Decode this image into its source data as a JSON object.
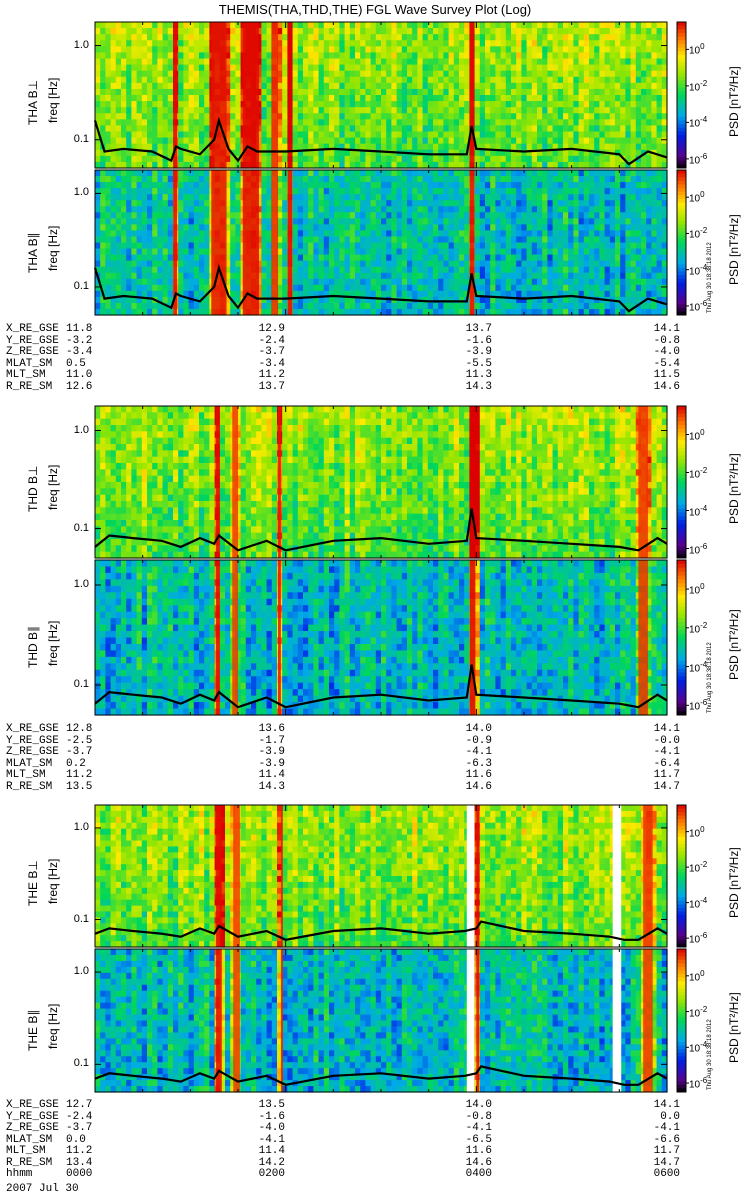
{
  "chart_data": {
    "type": "heatmap",
    "title": "THEMIS(THA,THD,THE) FGL Wave Survey Plot (Log)",
    "date": "2007 Jul 30",
    "stamp": "Thu Aug 30 18:38:18 2012",
    "x_range_hours": [
      0,
      6
    ],
    "time_ticks": [
      "0000",
      "0200",
      "0400",
      "0600"
    ],
    "freq_label": "freq [Hz]",
    "freq_ticks": [
      {
        "label": "1.0",
        "value": 1.0
      },
      {
        "label": "0.1",
        "value": 0.1
      }
    ],
    "freq_range_log10": [
      -1.3,
      0.25
    ],
    "colorbar": {
      "label": "PSD [nT²/Hz]",
      "range_log10": [
        -6.5,
        1.5
      ],
      "ticks": [
        {
          "base": "10",
          "exp": "0",
          "value": 0
        },
        {
          "base": "10",
          "exp": "-2",
          "value": -2
        },
        {
          "base": "10",
          "exp": "-4",
          "value": -4
        },
        {
          "base": "10",
          "exp": "-6",
          "value": -6
        }
      ]
    },
    "probes": [
      {
        "name": "THA",
        "panels": [
          {
            "label": "THA B⊥",
            "background_log10": -2.0,
            "stamp": false
          },
          {
            "label": "THA B∥",
            "background_log10": -3.2,
            "stamp": true
          }
        ],
        "bursts_hours": [
          {
            "t0": 0.82,
            "t1": 0.86,
            "level": 0.9
          },
          {
            "t0": 1.22,
            "t1": 1.38,
            "level": 0.8
          },
          {
            "t0": 1.55,
            "t1": 1.72,
            "level": 0.9
          },
          {
            "t0": 1.85,
            "t1": 1.92,
            "level": 0.6
          },
          {
            "t0": 2.02,
            "t1": 2.07,
            "level": 1.0
          },
          {
            "t0": 3.93,
            "t1": 3.98,
            "level": 0.9
          }
        ],
        "gaps_hours": [],
        "trace": {
          "x": [
            0.0,
            0.1,
            0.3,
            0.6,
            0.8,
            0.85,
            0.9,
            1.1,
            1.25,
            1.3,
            1.4,
            1.5,
            1.6,
            1.7,
            2.0,
            2.5,
            3.0,
            3.5,
            3.9,
            3.95,
            4.0,
            4.5,
            5.0,
            5.5,
            5.6,
            5.8,
            6.0
          ],
          "y": [
            0.16,
            0.075,
            0.08,
            0.075,
            0.06,
            0.085,
            0.08,
            0.07,
            0.1,
            0.16,
            0.08,
            0.06,
            0.085,
            0.075,
            0.075,
            0.08,
            0.075,
            0.07,
            0.07,
            0.14,
            0.08,
            0.075,
            0.08,
            0.07,
            0.055,
            0.075,
            0.065
          ]
        },
        "ephemeris": {
          "ticks": [
            "0000",
            "0200",
            "0400",
            "0600"
          ],
          "rows": [
            {
              "label": "X_RE_GSE",
              "values": [
                "11.8",
                "12.9",
                "13.7",
                "14.1"
              ]
            },
            {
              "label": "Y_RE_GSE",
              "values": [
                "-3.2",
                "-2.4",
                "-1.6",
                "-0.8"
              ]
            },
            {
              "label": "Z_RE_GSE",
              "values": [
                "-3.4",
                "-3.7",
                "-3.9",
                "-4.0"
              ]
            },
            {
              "label": "MLAT_SM",
              "values": [
                "0.5",
                "-3.4",
                "-5.5",
                "-5.4"
              ]
            },
            {
              "label": "MLT_SM",
              "values": [
                "11.0",
                "11.2",
                "11.3",
                "11.5"
              ]
            },
            {
              "label": "R_RE_SM",
              "values": [
                "12.6",
                "13.7",
                "14.3",
                "14.6"
              ]
            }
          ]
        }
      },
      {
        "name": "THD",
        "panels": [
          {
            "label": "THD B⊥",
            "background_log10": -2.0,
            "stamp": false
          },
          {
            "label": "THD B∥",
            "background_log10": -3.3,
            "stamp": true
          }
        ],
        "bursts_hours": [
          {
            "t0": 1.27,
            "t1": 1.31,
            "level": 0.9
          },
          {
            "t0": 1.44,
            "t1": 1.5,
            "level": 0.4
          },
          {
            "t0": 1.92,
            "t1": 1.95,
            "level": 0.8
          },
          {
            "t0": 3.93,
            "t1": 3.99,
            "level": 1.0
          },
          {
            "t0": 5.7,
            "t1": 5.8,
            "level": 0.5
          }
        ],
        "gaps_hours": [],
        "trace": {
          "x": [
            0.0,
            0.15,
            0.4,
            0.7,
            0.9,
            1.1,
            1.25,
            1.3,
            1.5,
            1.8,
            2.0,
            2.5,
            3.0,
            3.5,
            3.9,
            3.95,
            4.0,
            4.5,
            5.0,
            5.5,
            5.7,
            5.9,
            6.0
          ],
          "y": [
            0.065,
            0.085,
            0.08,
            0.075,
            0.065,
            0.08,
            0.07,
            0.085,
            0.06,
            0.075,
            0.06,
            0.075,
            0.08,
            0.07,
            0.075,
            0.16,
            0.08,
            0.075,
            0.07,
            0.065,
            0.06,
            0.08,
            0.07
          ]
        },
        "ephemeris": {
          "ticks": [
            "0000",
            "0200",
            "0400",
            "0600"
          ],
          "rows": [
            {
              "label": "X_RE_GSE",
              "values": [
                "12.8",
                "13.6",
                "14.0",
                "14.1"
              ]
            },
            {
              "label": "Y_RE_GSE",
              "values": [
                "-2.5",
                "-1.7",
                "-0.9",
                "-0.0"
              ]
            },
            {
              "label": "Z_RE_GSE",
              "values": [
                "-3.7",
                "-3.9",
                "-4.1",
                "-4.1"
              ]
            },
            {
              "label": "MLAT_SM",
              "values": [
                "0.2",
                "-3.9",
                "-6.3",
                "-6.4"
              ]
            },
            {
              "label": "MLT_SM",
              "values": [
                "11.2",
                "11.4",
                "11.6",
                "11.7"
              ]
            },
            {
              "label": "R_RE_SM",
              "values": [
                "13.5",
                "14.3",
                "14.6",
                "14.7"
              ]
            }
          ]
        }
      },
      {
        "name": "THE",
        "panels": [
          {
            "label": "THE B⊥",
            "background_log10": -2.0,
            "stamp": false
          },
          {
            "label": "THE B∥",
            "background_log10": -3.3,
            "stamp": true
          }
        ],
        "bursts_hours": [
          {
            "t0": 1.27,
            "t1": 1.33,
            "level": 0.9
          },
          {
            "t0": 1.45,
            "t1": 1.52,
            "level": 0.4
          },
          {
            "t0": 1.95,
            "t1": 1.97,
            "level": 0.7
          },
          {
            "t0": 4.0,
            "t1": 4.03,
            "level": 0.9
          },
          {
            "t0": 5.75,
            "t1": 5.85,
            "level": 0.5
          }
        ],
        "gaps_hours": [
          [
            3.9,
            3.98
          ],
          [
            5.43,
            5.52
          ]
        ],
        "trace": {
          "x": [
            0.0,
            0.15,
            0.4,
            0.7,
            0.9,
            1.1,
            1.25,
            1.3,
            1.5,
            1.8,
            2.0,
            2.5,
            3.0,
            3.5,
            3.88,
            4.0,
            4.05,
            4.5,
            5.0,
            5.4,
            5.55,
            5.7,
            5.9,
            6.0
          ],
          "y": [
            0.07,
            0.08,
            0.075,
            0.07,
            0.065,
            0.08,
            0.07,
            0.085,
            0.065,
            0.075,
            0.06,
            0.075,
            0.08,
            0.07,
            0.075,
            0.08,
            0.095,
            0.075,
            0.07,
            0.065,
            0.06,
            0.06,
            0.08,
            0.07
          ]
        },
        "ephemeris": {
          "ticks": [
            "0000",
            "0200",
            "0400",
            "0600"
          ],
          "rows": [
            {
              "label": "X_RE_GSE",
              "values": [
                "12.7",
                "13.5",
                "14.0",
                "14.1"
              ]
            },
            {
              "label": "Y_RE_GSE",
              "values": [
                "-2.4",
                "-1.6",
                "-0.8",
                "0.0"
              ]
            },
            {
              "label": "Z_RE_GSE",
              "values": [
                "-3.7",
                "-4.0",
                "-4.1",
                "-4.1"
              ]
            },
            {
              "label": "MLAT_SM",
              "values": [
                "0.0",
                "-4.1",
                "-6.5",
                "-6.6"
              ]
            },
            {
              "label": "MLT_SM",
              "values": [
                "11.2",
                "11.4",
                "11.6",
                "11.7"
              ]
            },
            {
              "label": "R_RE_SM",
              "values": [
                "13.4",
                "14.2",
                "14.6",
                "14.7"
              ]
            },
            {
              "label": "hhmm",
              "values": [
                "0000",
                "0200",
                "0400",
                "0600"
              ]
            }
          ]
        }
      }
    ]
  }
}
